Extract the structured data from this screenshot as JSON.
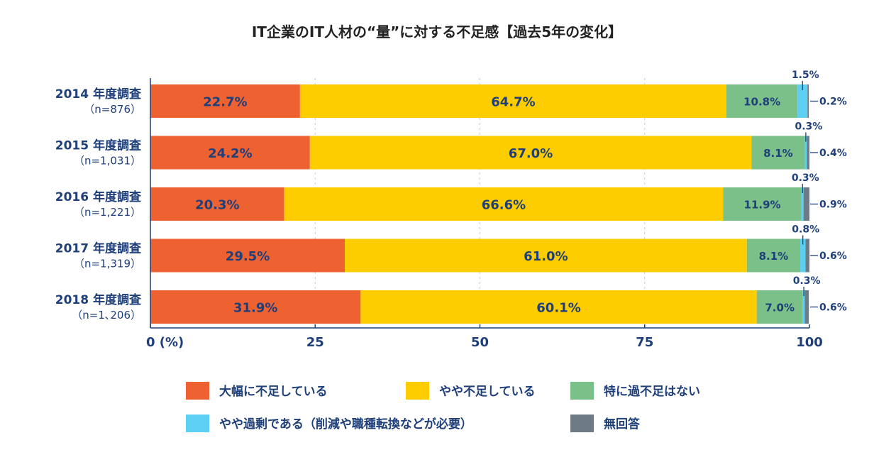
{
  "chart_data": {
    "type": "bar",
    "orientation": "horizontal",
    "stacked": true,
    "title": "IT企業のIT人材の“量”に対する不足感【過去5年の変化】",
    "xlabel": "",
    "ylabel": "",
    "xlim": [
      0,
      100
    ],
    "x_ticks": [
      "0 (%)",
      "25",
      "50",
      "75",
      "100"
    ],
    "grid": "vertical dashed",
    "legend_position": "bottom",
    "categories": [
      {
        "label": "2014 年度調査",
        "n": "（n=876）"
      },
      {
        "label": "2015 年度調査",
        "n": "（n=1,031）"
      },
      {
        "label": "2016 年度調査",
        "n": "（n=1,221）"
      },
      {
        "label": "2017 年度調査",
        "n": "（n=1,319）"
      },
      {
        "label": "2018 年度調査",
        "n": "（n=1､206）"
      }
    ],
    "series": [
      {
        "name": "大幅に不足している",
        "color": "#ee6232",
        "values": [
          22.7,
          24.2,
          20.3,
          29.5,
          31.9
        ],
        "labels": [
          "22.7%",
          "24.2%",
          "20.3%",
          "29.5%",
          "31.9%"
        ]
      },
      {
        "name": "やや不足している",
        "color": "#fdcd00",
        "values": [
          64.7,
          67.0,
          66.6,
          61.0,
          60.1
        ],
        "labels": [
          "64.7%",
          "67.0%",
          "66.6%",
          "61.0%",
          "60.1%"
        ]
      },
      {
        "name": "特に過不足はない",
        "color": "#7bc088",
        "values": [
          10.8,
          8.1,
          11.9,
          8.1,
          7.0
        ],
        "labels": [
          "10.8%",
          "8.1%",
          "11.9%",
          "8.1%",
          "7.0%"
        ]
      },
      {
        "name": "やや過剰である（削減や職種転換などが必要）",
        "color": "#5dcff3",
        "values": [
          1.5,
          0.3,
          0.3,
          0.8,
          0.3
        ],
        "labels": [
          "1.5%",
          "0.3%",
          "0.3%",
          "0.8%",
          "0.3%"
        ]
      },
      {
        "name": "無回答",
        "color": "#6e7b85",
        "values": [
          0.2,
          0.4,
          0.9,
          0.6,
          0.6
        ],
        "labels": [
          "0.2%",
          "0.4%",
          "0.9%",
          "0.6%",
          "0.6%"
        ]
      }
    ]
  },
  "colors": {
    "text": "#1f3f7a",
    "title": "#222222",
    "axis": "#1f3f7a",
    "grid": "#c8c8c8"
  }
}
